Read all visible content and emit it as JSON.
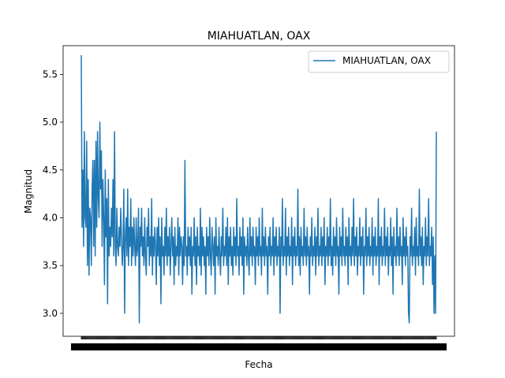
{
  "chart_data": {
    "type": "line",
    "title": "MIAHUATLAN, OAX",
    "xlabel": "Fecha",
    "ylabel": "Magnitud",
    "ylim": [
      2.76,
      5.8
    ],
    "yticks": [
      3.0,
      3.5,
      4.0,
      4.5,
      5.0,
      5.5
    ],
    "ytick_labels": [
      "3.0",
      "3.5",
      "4.0",
      "4.5",
      "5.0",
      "5.5"
    ],
    "x_tick_note": "dense overlapping date tick labels (illegible)",
    "grid": false,
    "legend": {
      "position": "top-right",
      "entries": [
        "MIAHUATLAN, OAX"
      ]
    },
    "series": [
      {
        "name": "MIAHUATLAN, OAX",
        "color": "#1f77b4",
        "values": [
          5.7,
          3.9,
          4.5,
          3.7,
          4.9,
          4.0,
          3.9,
          4.8,
          3.5,
          4.4,
          3.4,
          4.1,
          4.0,
          3.5,
          4.3,
          4.6,
          3.7,
          4.6,
          3.6,
          4.8,
          3.9,
          4.9,
          4.2,
          4.0,
          5.0,
          4.3,
          4.7,
          3.7,
          4.4,
          4.0,
          3.3,
          4.5,
          3.8,
          4.2,
          3.1,
          4.4,
          3.6,
          3.9,
          3.7,
          4.1,
          3.8,
          4.4,
          3.6,
          4.9,
          3.7,
          3.5,
          4.1,
          3.7,
          3.6,
          3.9,
          3.7,
          4.1,
          3.8,
          3.5,
          3.7,
          4.3,
          3.0,
          3.8,
          4.0,
          3.6,
          4.3,
          3.5,
          3.9,
          3.7,
          4.2,
          3.5,
          3.9,
          3.6,
          4.0,
          3.7,
          3.5,
          4.0,
          3.6,
          3.7,
          4.1,
          2.9,
          3.9,
          3.7,
          4.1,
          3.6,
          3.8,
          3.5,
          4.0,
          3.6,
          3.4,
          3.9,
          3.7,
          4.1,
          3.5,
          3.8,
          3.6,
          4.2,
          3.4,
          3.8,
          3.6,
          3.9,
          3.7,
          3.3,
          3.9,
          3.6,
          4.0,
          3.5,
          3.8,
          3.1,
          4.0,
          3.6,
          3.7,
          3.4,
          3.9,
          3.6,
          4.1,
          3.5,
          3.8,
          3.6,
          3.9,
          3.4,
          3.7,
          4.0,
          3.6,
          3.8,
          3.3,
          3.9,
          3.5,
          3.7,
          3.6,
          4.0,
          3.4,
          3.9,
          3.6,
          3.8,
          3.7,
          3.3,
          3.8,
          3.5,
          4.6,
          3.6,
          3.7,
          3.4,
          3.9,
          3.6,
          3.8,
          3.5,
          3.9,
          3.2,
          3.7,
          3.6,
          4.0,
          3.5,
          3.8,
          3.3,
          3.9,
          3.6,
          3.7,
          3.5,
          4.1,
          3.4,
          3.9,
          3.6,
          3.8,
          3.5,
          3.7,
          3.2,
          3.9,
          3.6,
          3.8,
          3.5,
          4.0,
          3.6,
          3.4,
          3.9,
          3.7,
          3.5,
          3.8,
          3.2,
          4.0,
          3.6,
          3.7,
          3.5,
          3.9,
          3.6,
          3.4,
          3.8,
          3.6,
          4.1,
          3.5,
          3.7,
          3.6,
          3.9,
          3.5,
          4.0,
          3.3,
          3.8,
          3.6,
          3.9,
          3.5,
          3.7,
          3.4,
          3.9,
          3.6,
          3.8,
          3.5,
          4.2,
          3.6,
          3.7,
          3.4,
          3.9,
          3.6,
          3.8,
          3.5,
          4.0,
          3.2,
          3.8,
          3.6,
          3.7,
          3.5,
          3.9,
          3.6,
          3.4,
          4.0,
          3.6,
          3.8,
          3.5,
          3.9,
          3.6,
          3.7,
          3.3,
          3.9,
          3.6,
          3.8,
          3.5,
          4.0,
          3.6,
          3.7,
          3.4,
          4.1,
          3.6,
          3.8,
          3.5,
          3.9,
          3.6,
          3.7,
          3.2,
          3.8,
          3.6,
          3.9,
          3.5,
          3.7,
          3.6,
          4.0,
          3.4,
          3.8,
          3.6,
          3.9,
          3.5,
          3.7,
          3.6,
          3.9,
          3.0,
          3.8,
          3.6,
          4.2,
          3.5,
          3.7,
          3.6,
          4.1,
          3.4,
          3.8,
          3.6,
          3.9,
          3.5,
          3.7,
          3.6,
          4.0,
          3.3,
          3.8,
          3.6,
          3.9,
          3.5,
          3.7,
          3.6,
          4.3,
          3.5,
          3.8,
          3.4,
          3.9,
          3.6,
          3.7,
          3.5,
          4.1,
          3.6,
          3.8,
          3.5,
          3.9,
          3.6,
          3.7,
          3.2,
          3.8,
          3.6,
          4.0,
          3.5,
          3.7,
          3.6,
          3.9,
          3.4,
          3.8,
          3.6,
          4.1,
          3.5,
          3.7,
          3.6,
          3.9,
          3.5,
          3.8,
          3.6,
          4.0,
          3.3,
          3.7,
          3.6,
          3.9,
          3.5,
          3.8,
          3.6,
          4.2,
          3.5,
          3.7,
          3.4,
          3.9,
          3.6,
          3.8,
          3.5,
          4.0,
          3.6,
          3.7,
          3.2,
          3.9,
          3.6,
          3.8,
          3.5,
          4.1,
          3.6,
          3.7,
          3.5,
          3.9,
          3.6,
          3.8,
          3.3,
          4.0,
          3.6,
          3.7,
          3.5,
          3.9,
          3.6,
          4.2,
          3.5,
          3.8,
          3.6,
          3.9,
          3.4,
          3.7,
          3.6,
          4.0,
          3.5,
          3.8,
          3.6,
          3.9,
          3.2,
          3.7,
          3.6,
          4.1,
          3.5,
          3.8,
          3.6,
          3.9,
          3.5,
          3.7,
          3.6,
          4.0,
          3.4,
          3.8,
          3.6,
          3.9,
          3.5,
          3.7,
          3.6,
          4.2,
          3.3,
          3.8,
          3.6,
          3.9,
          3.5,
          3.7,
          3.6,
          4.1,
          3.5,
          3.8,
          3.6,
          3.9,
          3.4,
          3.7,
          3.6,
          4.0,
          3.5,
          3.8,
          3.2,
          3.9,
          3.6,
          3.7,
          3.5,
          4.1,
          3.6,
          3.8,
          3.5,
          3.9,
          3.6,
          3.7,
          3.3,
          4.0,
          3.6,
          3.8,
          3.5,
          3.9,
          3.6,
          3.7,
          3.0,
          2.9,
          3.8,
          3.6,
          4.1,
          3.5,
          3.7,
          3.6,
          3.9,
          3.4,
          4.0,
          3.6,
          3.7,
          3.5,
          4.3,
          3.6,
          3.8,
          3.5,
          3.9,
          3.3,
          3.7,
          3.6,
          4.0,
          3.5,
          3.8,
          3.6,
          4.2,
          3.5,
          3.7,
          3.6,
          3.9,
          3.3,
          3.8,
          3.0,
          3.6,
          3.0,
          4.9
        ]
      }
    ]
  }
}
